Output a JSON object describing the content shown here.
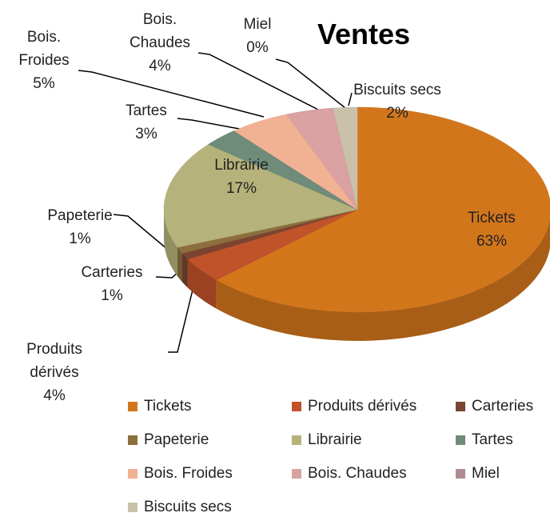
{
  "chart_data": {
    "type": "pie",
    "title": "Ventes",
    "categories": [
      "Tickets",
      "Produits dérivés",
      "Carteries",
      "Papeterie",
      "Librairie",
      "Tartes",
      "Bois. Froides",
      "Bois. Chaudes",
      "Miel",
      "Biscuits secs"
    ],
    "values": [
      63,
      4,
      1,
      1,
      17,
      3,
      5,
      4,
      0,
      2
    ],
    "value_labels": [
      "63%",
      "4%",
      "1%",
      "1%",
      "17%",
      "3%",
      "5%",
      "4%",
      "0%",
      "2%"
    ],
    "colors": [
      "#d2761c",
      "#c0532a",
      "#7b4431",
      "#8c6f3d",
      "#b6b27b",
      "#6f8b79",
      "#f1b293",
      "#d9a1a1",
      "#b08a92",
      "#c9c1aa"
    ],
    "legend": "bottom"
  }
}
